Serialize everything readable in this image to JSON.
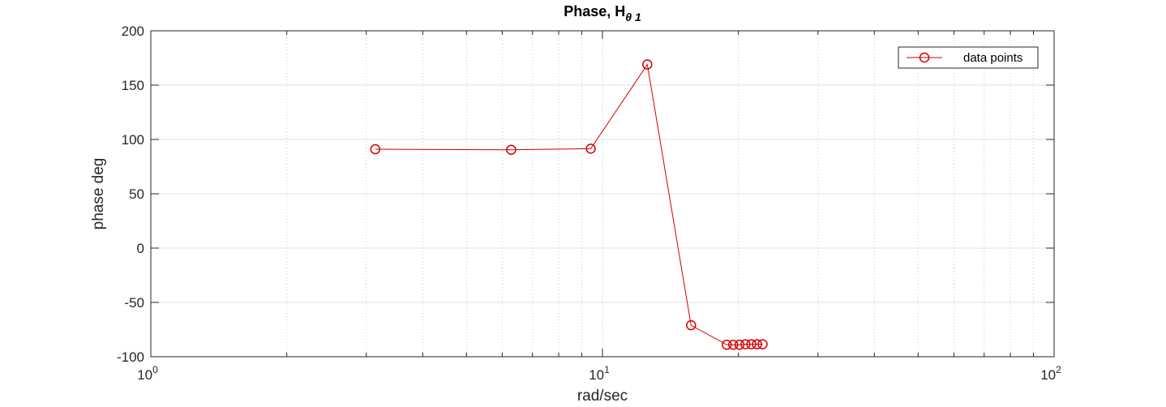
{
  "chart_data": {
    "type": "line",
    "title": "Phase, H",
    "title_subscript": "θ 1",
    "xlabel": "rad/sec",
    "ylabel": "phase deg",
    "xscale": "log",
    "xlim": [
      1,
      100
    ],
    "ylim": [
      -100,
      200
    ],
    "xticks": [
      {
        "value": 1,
        "base": "10",
        "exp": "0"
      },
      {
        "value": 10,
        "base": "10",
        "exp": "1"
      },
      {
        "value": 100,
        "base": "10",
        "exp": "2"
      }
    ],
    "yticks": [
      -100,
      -50,
      0,
      50,
      100,
      150,
      200
    ],
    "grid": "on",
    "minor_grid_x": true,
    "legend_position": "top-right",
    "series": [
      {
        "name": "data points",
        "color": "#d00000",
        "marker": "circle",
        "x": [
          3.14,
          6.28,
          9.42,
          12.57,
          15.71,
          18.85,
          19.48,
          20.11,
          20.73,
          21.36,
          21.99,
          22.62
        ],
        "y": [
          91,
          90.5,
          91.5,
          169,
          -71,
          -89,
          -89,
          -89,
          -88.5,
          -88.5,
          -88.5,
          -88.5
        ]
      }
    ]
  }
}
